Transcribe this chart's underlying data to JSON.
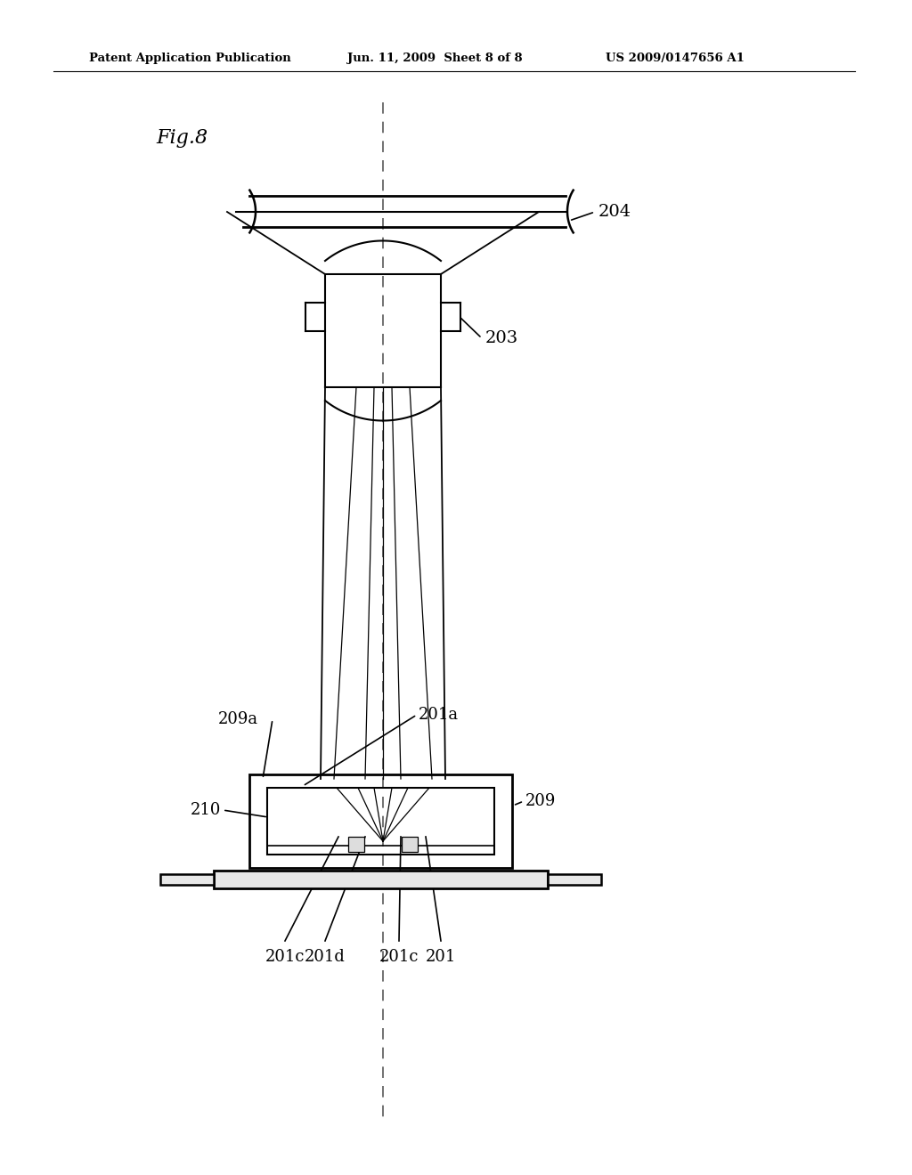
{
  "bg_color": "#ffffff",
  "line_color": "#000000",
  "dashed_color": "#666666",
  "header_line1": "Patent Application Publication",
  "header_line2": "Jun. 11, 2009  Sheet 8 of 8",
  "header_line3": "US 2009/0147656 A1",
  "fig_label": "Fig.8",
  "label_203": "203",
  "label_204": "204",
  "label_209": "209",
  "label_209a": "209a",
  "label_210": "210",
  "label_201a": "201a",
  "label_201c_left": "201c",
  "label_201d": "201d",
  "label_201c_right": "201c",
  "label_201": "201"
}
